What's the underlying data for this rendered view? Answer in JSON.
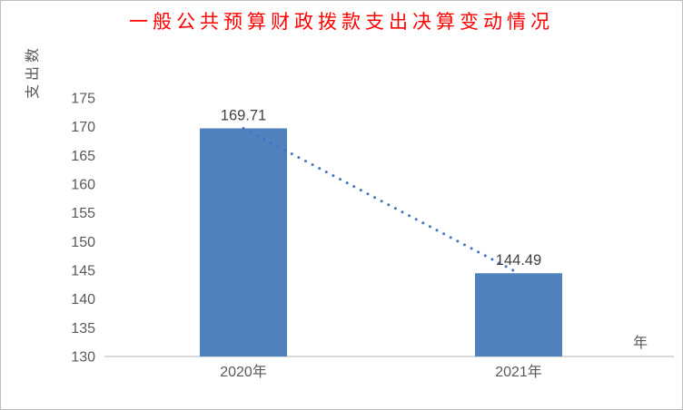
{
  "chart_data": {
    "type": "bar",
    "title": "一般公共预算财政拨款支出决算变动情况",
    "ylabel": "支出数",
    "xlabel": "年",
    "categories": [
      "2020年",
      "2021年"
    ],
    "values": [
      169.71,
      144.49
    ],
    "data_labels": [
      "169.71",
      "144.49"
    ],
    "ylim": [
      130,
      175
    ],
    "ytick_step": 5,
    "yticks": [
      130,
      135,
      140,
      145,
      150,
      155,
      160,
      165,
      170,
      175
    ],
    "grid": false,
    "legend": "none",
    "trendline": {
      "style": "dotted",
      "from_value": 169.71,
      "to_value": 144.49
    },
    "colors": {
      "bar": "#4F81BD",
      "trendline": "#4472C4",
      "title": "#FF0000",
      "axis_text": "#595959",
      "data_label": "#3F3F3F",
      "axis_line": "#D9D9D9",
      "frame_border": "#BFBFBF"
    }
  }
}
